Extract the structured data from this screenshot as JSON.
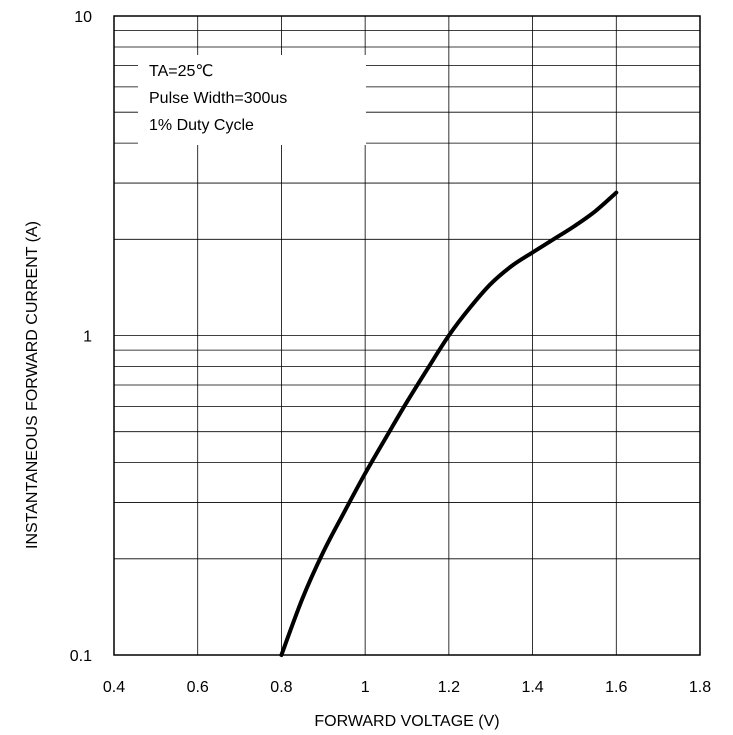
{
  "chart_data": {
    "type": "line",
    "xlabel": "FORWARD VOLTAGE (V)",
    "ylabel": "INSTANTANEOUS FORWARD CURRENT (A)",
    "xlim": [
      0.4,
      1.8
    ],
    "ylim": [
      0.1,
      10
    ],
    "yscale": "log",
    "grid": true,
    "x_ticks": [
      "0.4",
      "0.6",
      "0.8",
      "1",
      "1.2",
      "1.4",
      "1.6",
      "1.8"
    ],
    "y_ticks": [
      "0.1",
      "1",
      "10"
    ],
    "annotations": [
      "TA=25℃",
      "Pulse Width=300us",
      "1% Duty Cycle"
    ],
    "series": [
      {
        "x": [
          0.8,
          0.85,
          0.9,
          0.95,
          1.0,
          1.05,
          1.1,
          1.15,
          1.2,
          1.25,
          1.3,
          1.35,
          1.4,
          1.45,
          1.5,
          1.55,
          1.6
        ],
        "y": [
          0.1,
          0.15,
          0.21,
          0.28,
          0.37,
          0.48,
          0.62,
          0.79,
          1.0,
          1.22,
          1.45,
          1.65,
          1.82,
          2.0,
          2.2,
          2.45,
          2.8
        ]
      }
    ]
  }
}
